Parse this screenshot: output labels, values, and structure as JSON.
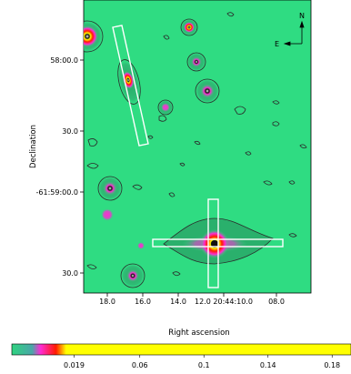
{
  "chart_data": {
    "type": "heatmap",
    "xlabel": "Right ascension",
    "ylabel": "Declination",
    "x_ticks": [
      "18.0",
      "16.0",
      "14.0",
      "12.0 20:44:10.0",
      "08.0"
    ],
    "y_ticks": [
      "58:00.0",
      "30.0",
      "-61:59:00.0",
      "30.0"
    ],
    "compass": {
      "north": "N",
      "east": "E"
    },
    "colorbar": {
      "ticks": [
        "0.019",
        "0.06",
        "0.1",
        "0.14",
        "0.18"
      ],
      "tick_values": [
        0.019,
        0.06,
        0.1,
        0.14,
        0.18
      ],
      "range": [
        0.0,
        0.2
      ],
      "colors": [
        "#2fd37f",
        "#ff2bd4",
        "#ff1a00",
        "#ffff00"
      ]
    },
    "colors": {
      "background": "#2fdc82",
      "contour": "#2b2b2b",
      "halo_dark": "#2aa86a",
      "source_magenta": "#ff2bd4",
      "source_yellow": "#ffff00",
      "box": "#ffffff"
    }
  }
}
